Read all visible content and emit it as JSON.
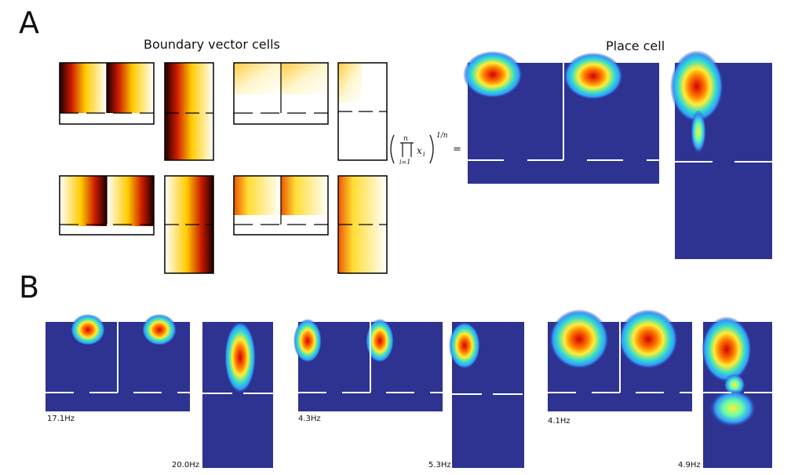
{
  "figure": {
    "panel_a": {
      "letter": "A",
      "bvc_title": "Boundary vector cells",
      "place_title": "Place cell",
      "formula": {
        "product_top": "n",
        "product_bottom": "i=1",
        "variable": "x",
        "subscript": "i",
        "exponent": "1/n",
        "equals": "="
      }
    },
    "panel_b": {
      "letter": "B",
      "rates": [
        "17.1Hz",
        "20.0Hz",
        "4.3Hz",
        "5.3Hz",
        "4.1Hz",
        "4.9Hz"
      ]
    },
    "colors": {
      "map_background": "#2e3290",
      "bvc_dark": "#1a0000",
      "bvc_red": "#cc1a00",
      "bvc_yellow": "#ffee33",
      "wall": "#ffffff"
    }
  }
}
